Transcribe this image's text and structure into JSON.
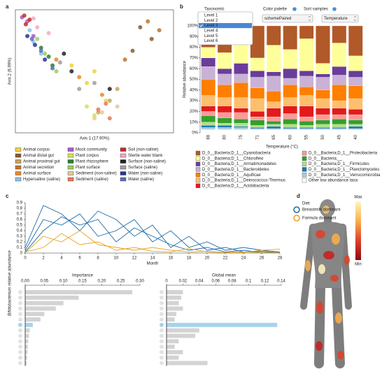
{
  "panel_labels": [
    "a",
    "b",
    "c",
    "d"
  ],
  "chart_data": [
    {
      "type": "scatter",
      "xlabel": "Axis 1 (17.90%)",
      "ylabel": "Axis 2 (6.99%)",
      "xlim": [
        -1,
        1
      ],
      "ylim": [
        -1,
        1
      ],
      "series": [
        {
          "name": "Animal corpus",
          "color": "#f2d13b",
          "x": [
            -0.3,
            -0.1,
            0.0
          ],
          "y": [
            0.1,
            -0.2,
            0.0
          ]
        },
        {
          "name": "Animal distal gut",
          "color": "#8b5a2b",
          "x": [
            0.6,
            0.75,
            0.5
          ],
          "y": [
            0.75,
            0.55,
            0.35
          ]
        },
        {
          "name": "Animal proximal gut",
          "color": "#c9a35a",
          "x": [
            0.2,
            0.05,
            0.3
          ],
          "y": [
            -0.5,
            -0.7,
            -0.3
          ]
        },
        {
          "name": "Animal secretion",
          "color": "#c0742e",
          "x": [
            0.7,
            0.85,
            0.4
          ],
          "y": [
            0.85,
            0.7,
            0.2
          ]
        },
        {
          "name": "Animal surface",
          "color": "#e8892b",
          "x": [
            -0.5,
            -0.2,
            0.1
          ],
          "y": [
            0.2,
            -0.1,
            -0.4
          ]
        },
        {
          "name": "Hypersaline (saline)",
          "color": "#8ec2e8",
          "x": [
            -0.85,
            -0.8,
            -0.7
          ],
          "y": [
            0.7,
            0.5,
            0.3
          ]
        },
        {
          "name": "Mock community",
          "color": "#a55bc4",
          "x": [
            -0.95,
            -0.88,
            -0.8
          ],
          "y": [
            0.92,
            0.85,
            0.6
          ]
        },
        {
          "name": "Plant corpus",
          "color": "#d4e157",
          "x": [
            -0.1,
            0.0,
            0.15
          ],
          "y": [
            -0.6,
            -0.75,
            -0.5
          ]
        },
        {
          "name": "Plant rhizosphere",
          "color": "#2e7d32",
          "x": [
            -0.6,
            -0.55,
            -0.7
          ],
          "y": [
            0.25,
            0.1,
            0.4
          ]
        },
        {
          "name": "Plant surface",
          "color": "#9ccc65",
          "x": [
            -0.65,
            -0.5,
            -0.75
          ],
          "y": [
            0.3,
            0.0,
            0.55
          ]
        },
        {
          "name": "Sediment (non-saline)",
          "color": "#e9c79a",
          "x": [
            0.1,
            0.3,
            0.0
          ],
          "y": [
            -0.7,
            -0.6,
            -0.8
          ]
        },
        {
          "name": "Sediment (saline)",
          "color": "#e8785a",
          "x": [
            0.15,
            0.2,
            0.05
          ],
          "y": [
            -0.55,
            -0.8,
            -0.65
          ]
        },
        {
          "name": "Soil (non-saline)",
          "color": "#c62828",
          "x": [
            -0.92,
            -0.85,
            -0.9
          ],
          "y": [
            0.95,
            0.88,
            0.8
          ]
        },
        {
          "name": "Sterile water blank",
          "color": "#f4a7c6",
          "x": [
            -0.8,
            -0.75,
            -0.6
          ],
          "y": [
            0.9,
            0.75,
            0.65
          ]
        },
        {
          "name": "Surface (non-saline)",
          "color": "#222222",
          "x": [
            -0.4,
            -0.3,
            0.2
          ],
          "y": [
            0.3,
            0.0,
            -0.3
          ]
        },
        {
          "name": "Surface (saline)",
          "color": "#9e9e9e",
          "x": [
            -0.45,
            -0.2,
            0.0
          ],
          "y": [
            0.15,
            -0.3,
            -0.2
          ]
        },
        {
          "name": "Water (non-saline)",
          "color": "#283593",
          "x": [
            -0.88,
            -0.78,
            -0.65
          ],
          "y": [
            0.6,
            0.45,
            0.2
          ]
        },
        {
          "name": "Water (saline)",
          "color": "#5c6bc0",
          "x": [
            -0.82,
            -0.7,
            -0.55
          ],
          "y": [
            0.55,
            0.35,
            0.05
          ]
        }
      ]
    },
    {
      "type": "stacked_bar",
      "controls": {
        "taxonomic": {
          "label": "Taxonomic",
          "options": [
            "Level 1",
            "Level 2",
            "Level 3",
            "Level 4",
            "Level 5",
            "Level 6"
          ],
          "selected": 2
        },
        "palette": {
          "label": "Color palette",
          "value": "schemePaired"
        },
        "sort": {
          "label": "Sort samples",
          "value": "Temperature"
        }
      },
      "ylabel": "Relative abundance",
      "xlabel": "Temperature (°C)",
      "categories": [
        "88",
        "80",
        "75",
        "71",
        "65",
        "60",
        "55",
        "50",
        "45",
        "40"
      ],
      "ylim": [
        0,
        100
      ],
      "yticks": [
        {
          "value": 0,
          "label": "0%"
        },
        {
          "value": 10,
          "label": "10%"
        },
        {
          "value": 20,
          "label": "20%"
        },
        {
          "value": 30,
          "label": "30%"
        },
        {
          "value": 40,
          "label": "40%"
        },
        {
          "value": 50,
          "label": "50%"
        },
        {
          "value": 60,
          "label": "60%"
        },
        {
          "value": 70,
          "label": "70%"
        },
        {
          "value": 80,
          "label": "80%"
        },
        {
          "value": 90,
          "label": "90%"
        },
        {
          "value": 100,
          "label": "100%"
        }
      ],
      "series": [
        {
          "name": "D_0__Bacteria;D_1__Cyanobacteria",
          "color": "#b15928",
          "values": [
            20,
            25,
            15,
            30,
            18,
            22,
            12,
            35,
            16,
            28
          ]
        },
        {
          "name": "D_0__Bacteria;D_1__Chloroflexi",
          "color": "#ffff99",
          "values": [
            10,
            15,
            20,
            12,
            25,
            18,
            30,
            10,
            22,
            14
          ]
        },
        {
          "name": "D_0__Bacteria;D_1__Armatimonadetes",
          "color": "#6a3d9a",
          "values": [
            8,
            5,
            10,
            6,
            4,
            9,
            5,
            3,
            8,
            6
          ]
        },
        {
          "name": "D_0__Bacteria;D_1__Bacteroidetes",
          "color": "#cab2d6",
          "values": [
            12,
            10,
            8,
            10,
            14,
            6,
            10,
            12,
            9,
            8
          ]
        },
        {
          "name": "D_0__Bacteria;D_1__Aquificae",
          "color": "#ff7f00",
          "values": [
            15,
            12,
            14,
            10,
            10,
            12,
            8,
            8,
            15,
            12
          ]
        },
        {
          "name": "D_0__Bacteria;D_1__Deinococcus-Thermus",
          "color": "#fdbf6f",
          "values": [
            10,
            8,
            10,
            12,
            6,
            8,
            10,
            9,
            7,
            10
          ]
        },
        {
          "name": "D_0__Bacteria;D_1__Acidobacteria",
          "color": "#e31a1c",
          "values": [
            5,
            6,
            4,
            5,
            8,
            7,
            10,
            6,
            6,
            5
          ]
        },
        {
          "name": "D_0__Bacteria;D_1__Proteobacteria",
          "color": "#fb9a99",
          "values": [
            4,
            5,
            6,
            3,
            4,
            5,
            4,
            5,
            4,
            5
          ]
        },
        {
          "name": "D_0__Bacteria;__",
          "color": "#33a02c",
          "values": [
            6,
            5,
            4,
            5,
            3,
            5,
            4,
            4,
            5,
            4
          ]
        },
        {
          "name": "D_0__Bacteria;D_1__Firmicutes",
          "color": "#b2df8a",
          "values": [
            3,
            2,
            3,
            2,
            2,
            3,
            2,
            3,
            3,
            2
          ]
        },
        {
          "name": "D_0__Bacteria;D_1__Planctomycetes",
          "color": "#1f78b4",
          "values": [
            2,
            2,
            1,
            1,
            2,
            1,
            1,
            1,
            1,
            2
          ]
        },
        {
          "name": "D_0__Bacteria;D_1__Verrucomicrobia",
          "color": "#a6cee3",
          "values": [
            2,
            2,
            2,
            1,
            1,
            1,
            1,
            1,
            1,
            1
          ]
        },
        {
          "name": "Other low abundance taxa",
          "color": "#ffffff",
          "values": [
            3,
            3,
            3,
            3,
            3,
            3,
            3,
            3,
            3,
            3
          ]
        }
      ]
    },
    {
      "type": "line",
      "ylabel": "Bifidobacterium relative abundance",
      "xlabel": "Month",
      "x": [
        0,
        2,
        4,
        6,
        8,
        10,
        12,
        14,
        16,
        18,
        20,
        22,
        24,
        26,
        28
      ],
      "xlim": [
        0,
        28
      ],
      "xticks": [
        0,
        2,
        4,
        6,
        8,
        10,
        12,
        14,
        16,
        18,
        20,
        22,
        24,
        26,
        28
      ],
      "ylim": [
        0,
        0.9
      ],
      "yticks": [
        0,
        0.1,
        0.2,
        0.3,
        0.4,
        0.5,
        0.6,
        0.7,
        0.8,
        0.9
      ],
      "legend_title": "Diet",
      "series": [
        {
          "name": "Breastmilk dominant",
          "color": "#1f6aa5",
          "values": [
            [
              0.05,
              0.6,
              0.5,
              0.7,
              0.3,
              0.4,
              0.6,
              0.2,
              0.4,
              0.1,
              0.2,
              0.05,
              0.1,
              0.05,
              0.02
            ],
            [
              0.1,
              0.85,
              0.7,
              0.4,
              0.75,
              0.6,
              0.3,
              0.5,
              0.1,
              0.3,
              0.05,
              0.1,
              0.02,
              0.03,
              0.01
            ],
            [
              0.02,
              0.4,
              0.65,
              0.5,
              0.6,
              0.2,
              0.45,
              0.3,
              0.15,
              0.05,
              0.1,
              0.02,
              0.05,
              0.01,
              0.01
            ]
          ]
        },
        {
          "name": "Formula dominant",
          "color": "#e8a21c",
          "values": [
            [
              0.01,
              0.3,
              0.2,
              0.4,
              0.15,
              0.1,
              0.05,
              0.1,
              0.05,
              0.02,
              0.03,
              0.01,
              0.02,
              0.01,
              0.01
            ],
            [
              0.02,
              0.1,
              0.35,
              0.15,
              0.2,
              0.05,
              0.1,
              0.03,
              0.02,
              0.08,
              0.02,
              0.01,
              0.01,
              0.05,
              0.07
            ]
          ]
        }
      ]
    },
    {
      "type": "hbar",
      "title": "Importance",
      "xlim": [
        0,
        0.3
      ],
      "xticks": [
        {
          "value": 0,
          "label": "0.00"
        },
        {
          "value": 0.05,
          "label": "0.05"
        },
        {
          "value": 0.1,
          "label": "0.10"
        },
        {
          "value": 0.15,
          "label": "0.15"
        },
        {
          "value": 0.2,
          "label": "0.20"
        },
        {
          "value": 0.25,
          "label": "0.25"
        },
        {
          "value": 0.3,
          "label": "0.30"
        }
      ],
      "values": [
        0.28,
        0.14,
        0.1,
        0.08,
        0.05,
        0.04,
        0.02,
        0.012,
        0.01,
        0.008,
        0.007,
        0.006,
        0.005,
        0.004
      ],
      "color": "#d3d3d3",
      "highlight_index": 6,
      "highlight_color": "#a6d4ea"
    },
    {
      "type": "hbar",
      "title": "Global mean",
      "xlim": [
        0,
        0.14
      ],
      "xticks": [
        0,
        0.02,
        0.04,
        0.06,
        0.08,
        0.1,
        0.12,
        0.14
      ],
      "values": [
        0.02,
        0.018,
        0.015,
        0.02,
        0.012,
        0.01,
        0.135,
        0.04,
        0.035,
        0.015,
        0.01,
        0.02,
        0.015,
        0.05
      ],
      "color": "#d3d3d3",
      "highlight_index": 6,
      "highlight_color": "#a6d4ea"
    },
    {
      "type": "colorbar",
      "max_label": "Max",
      "min_label": "Min",
      "colors": [
        "#fff6c0",
        "#fbb04a",
        "#e0402a",
        "#8a0a14"
      ]
    }
  ]
}
